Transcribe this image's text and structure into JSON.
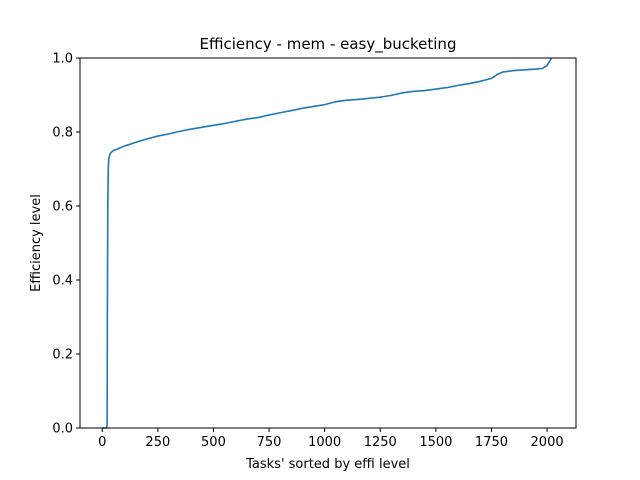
{
  "chart_data": {
    "type": "line",
    "title": "Efficiency - mem - easy_bucketing",
    "xlabel": "Tasks' sorted by effi level",
    "ylabel": "Efficiency level",
    "xlim": [
      -100,
      2130
    ],
    "ylim": [
      0,
      1.0
    ],
    "xticks": [
      0,
      250,
      500,
      750,
      1000,
      1250,
      1500,
      1750,
      2000
    ],
    "yticks": [
      0.0,
      0.2,
      0.4,
      0.6,
      0.8,
      1.0
    ],
    "xtick_labels": [
      "0",
      "250",
      "500",
      "750",
      "1000",
      "1250",
      "1500",
      "1750",
      "2000"
    ],
    "ytick_labels": [
      "0.0",
      "0.2",
      "0.4",
      "0.6",
      "0.8",
      "1.0"
    ],
    "grid": false,
    "series": [
      {
        "color": "#1f77b4",
        "x": [
          0,
          20,
          22,
          23,
          25,
          27,
          30,
          35,
          40,
          50,
          60,
          80,
          100,
          150,
          200,
          250,
          300,
          350,
          400,
          450,
          500,
          550,
          600,
          650,
          700,
          750,
          800,
          850,
          900,
          950,
          1000,
          1050,
          1100,
          1150,
          1200,
          1250,
          1300,
          1350,
          1400,
          1450,
          1500,
          1550,
          1600,
          1650,
          1700,
          1750,
          1775,
          1800,
          1850,
          1900,
          1950,
          1980,
          2000,
          2010,
          2020
        ],
        "y": [
          0.0,
          0.0,
          0.01,
          0.3,
          0.6,
          0.7,
          0.73,
          0.74,
          0.745,
          0.75,
          0.752,
          0.757,
          0.762,
          0.772,
          0.781,
          0.789,
          0.795,
          0.802,
          0.808,
          0.813,
          0.818,
          0.823,
          0.829,
          0.835,
          0.839,
          0.846,
          0.852,
          0.858,
          0.864,
          0.869,
          0.874,
          0.882,
          0.886,
          0.888,
          0.891,
          0.894,
          0.899,
          0.906,
          0.91,
          0.912,
          0.916,
          0.92,
          0.926,
          0.931,
          0.937,
          0.945,
          0.955,
          0.962,
          0.966,
          0.968,
          0.97,
          0.972,
          0.98,
          0.99,
          1.0
        ]
      }
    ]
  }
}
